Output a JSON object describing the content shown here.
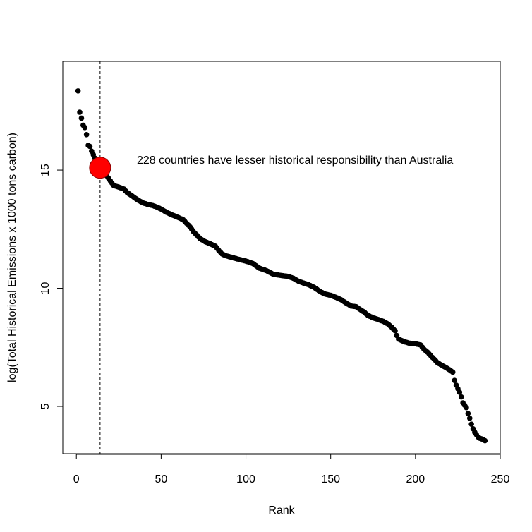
{
  "chart_data": {
    "type": "scatter",
    "title": "",
    "xlabel": "Rank",
    "ylabel": "log(Total Historical Emissions x 1000 tons carbon)",
    "xlim": [
      -8,
      250
    ],
    "ylim": [
      3.0,
      19.6
    ],
    "x_ticks": [
      0,
      50,
      100,
      150,
      200,
      250
    ],
    "y_ticks": [
      5,
      10,
      15
    ],
    "grid": false,
    "legend": "none",
    "point_color": "#000000",
    "highlight": {
      "x": 14,
      "y": 15.1,
      "color": "#ff0000",
      "vline_x": 14,
      "vline_style": "dashed"
    },
    "annotation": "228 countries have lesser historical responsibility than Australia",
    "curve_points": [
      [
        1,
        18.35
      ],
      [
        2,
        17.45
      ],
      [
        3,
        17.2
      ],
      [
        4,
        16.9
      ],
      [
        5,
        16.8
      ],
      [
        6,
        16.5
      ],
      [
        7,
        16.05
      ],
      [
        8,
        16.0
      ],
      [
        9,
        15.8
      ],
      [
        10,
        15.65
      ],
      [
        11,
        15.5
      ],
      [
        12,
        15.35
      ],
      [
        13,
        15.25
      ],
      [
        15,
        15.0
      ],
      [
        16,
        14.92
      ],
      [
        17,
        14.85
      ],
      [
        18,
        14.75
      ],
      [
        19,
        14.65
      ],
      [
        20,
        14.55
      ],
      [
        21,
        14.45
      ],
      [
        22,
        14.35
      ],
      [
        25,
        14.28
      ],
      [
        28,
        14.2
      ],
      [
        30,
        14.05
      ],
      [
        33,
        13.9
      ],
      [
        36,
        13.75
      ],
      [
        39,
        13.62
      ],
      [
        42,
        13.55
      ],
      [
        45,
        13.5
      ],
      [
        48,
        13.42
      ],
      [
        50,
        13.35
      ],
      [
        53,
        13.22
      ],
      [
        56,
        13.12
      ],
      [
        60,
        13.0
      ],
      [
        63,
        12.9
      ],
      [
        65,
        12.75
      ],
      [
        67,
        12.6
      ],
      [
        69,
        12.4
      ],
      [
        71,
        12.25
      ],
      [
        73,
        12.1
      ],
      [
        76,
        11.97
      ],
      [
        79,
        11.88
      ],
      [
        82,
        11.78
      ],
      [
        84,
        11.6
      ],
      [
        86,
        11.45
      ],
      [
        88,
        11.38
      ],
      [
        92,
        11.3
      ],
      [
        96,
        11.22
      ],
      [
        100,
        11.15
      ],
      [
        104,
        11.05
      ],
      [
        106,
        10.95
      ],
      [
        108,
        10.85
      ],
      [
        112,
        10.75
      ],
      [
        116,
        10.6
      ],
      [
        120,
        10.55
      ],
      [
        125,
        10.5
      ],
      [
        128,
        10.42
      ],
      [
        131,
        10.3
      ],
      [
        134,
        10.22
      ],
      [
        137,
        10.15
      ],
      [
        140,
        10.05
      ],
      [
        142,
        9.95
      ],
      [
        144,
        9.85
      ],
      [
        147,
        9.75
      ],
      [
        150,
        9.7
      ],
      [
        153,
        9.62
      ],
      [
        156,
        9.52
      ],
      [
        159,
        9.38
      ],
      [
        162,
        9.25
      ],
      [
        165,
        9.22
      ],
      [
        167,
        9.12
      ],
      [
        170,
        8.98
      ],
      [
        172,
        8.85
      ],
      [
        175,
        8.75
      ],
      [
        178,
        8.68
      ],
      [
        181,
        8.6
      ],
      [
        184,
        8.48
      ],
      [
        186,
        8.35
      ],
      [
        188,
        8.2
      ],
      [
        189,
        8.0
      ],
      [
        190,
        7.85
      ],
      [
        193,
        7.75
      ],
      [
        196,
        7.68
      ],
      [
        200,
        7.65
      ],
      [
        203,
        7.6
      ],
      [
        205,
        7.42
      ],
      [
        207,
        7.3
      ],
      [
        209,
        7.15
      ],
      [
        211,
        7.0
      ],
      [
        213,
        6.85
      ],
      [
        216,
        6.72
      ],
      [
        219,
        6.6
      ],
      [
        222,
        6.45
      ],
      [
        223,
        6.1
      ],
      [
        224,
        5.9
      ],
      [
        225,
        5.75
      ],
      [
        226,
        5.6
      ],
      [
        227,
        5.4
      ],
      [
        228,
        5.15
      ],
      [
        229,
        5.05
      ],
      [
        230,
        4.95
      ],
      [
        231,
        4.7
      ],
      [
        232,
        4.5
      ],
      [
        233,
        4.25
      ],
      [
        234,
        4.05
      ],
      [
        235,
        3.9
      ],
      [
        236,
        3.8
      ],
      [
        237,
        3.7
      ],
      [
        238,
        3.65
      ],
      [
        240,
        3.6
      ],
      [
        241,
        3.55
      ]
    ]
  }
}
